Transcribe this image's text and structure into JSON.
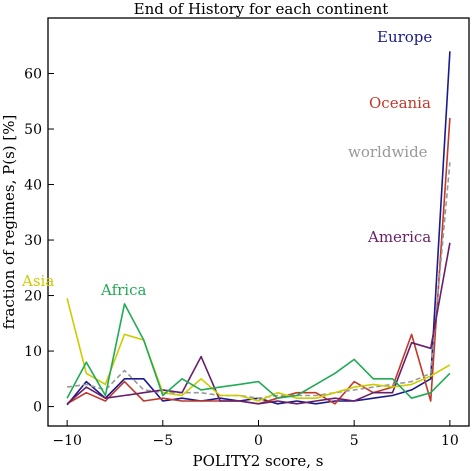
{
  "chart_data": {
    "type": "line",
    "title": "End of History for each continent",
    "xlabel": "POLITY2 score, s",
    "ylabel": "fraction of regimes, P(s) [%]",
    "xlim": [
      -11,
      11
    ],
    "ylim": [
      -3.5,
      70
    ],
    "xticks": [
      -10,
      -5,
      0,
      5,
      10
    ],
    "yticks": [
      0,
      10,
      20,
      30,
      40,
      50,
      60
    ],
    "grid": false,
    "x": [
      -10,
      -9,
      -8,
      -7,
      -6,
      -5,
      -4,
      -3,
      -2,
      -1,
      0,
      1,
      2,
      3,
      4,
      5,
      6,
      7,
      8,
      9,
      10
    ],
    "series": [
      {
        "name": "Europe",
        "color": "#1a1a8c",
        "dashed": false,
        "values": [
          0.3,
          4.5,
          1.5,
          5,
          5,
          1,
          1.5,
          1,
          1.5,
          1,
          1.5,
          0.5,
          1,
          0.5,
          1,
          1,
          1.5,
          2,
          3,
          5,
          64
        ]
      },
      {
        "name": "Oceania",
        "color": "#c0392b",
        "dashed": false,
        "values": [
          0.5,
          2.5,
          1,
          4.5,
          1,
          1.5,
          1,
          1,
          1,
          1,
          0.5,
          1.5,
          2.5,
          2.5,
          0.5,
          4.5,
          2.5,
          3.5,
          13,
          1,
          52
        ]
      },
      {
        "name": "worldwide",
        "color": "#999999",
        "dashed": true,
        "values": [
          3.5,
          4,
          3,
          6.5,
          3,
          2.5,
          2.5,
          2.5,
          2,
          2,
          1.5,
          2,
          2,
          2,
          2.5,
          3,
          3.5,
          4,
          4.5,
          6,
          44
        ]
      },
      {
        "name": "America",
        "color": "#6a1f6a",
        "dashed": false,
        "values": [
          0.5,
          3.5,
          1.5,
          2,
          2.5,
          3,
          2.5,
          9,
          1,
          1,
          0.5,
          1,
          0.5,
          1,
          1.5,
          1,
          2.5,
          2.5,
          11.5,
          10.5,
          29.5
        ]
      },
      {
        "name": "Asia",
        "color": "#cccc00",
        "dashed": false,
        "values": [
          19.5,
          6,
          4,
          13,
          12,
          2.5,
          2,
          5,
          2,
          2,
          1,
          2.5,
          1.5,
          1.5,
          2.5,
          3.5,
          4,
          3.5,
          4,
          5.5,
          7.5
        ]
      },
      {
        "name": "Africa",
        "color": "#22aa55",
        "dashed": false,
        "values": [
          1.5,
          8,
          2,
          18.5,
          12,
          2,
          5,
          3,
          3.5,
          4,
          4.5,
          1.5,
          2,
          4,
          6,
          8.5,
          5,
          5,
          1.5,
          2.5,
          6
        ]
      }
    ],
    "labels": {
      "Europe": "Europe",
      "Oceania": "Oceania",
      "worldwide": "worldwide",
      "America": "America",
      "Asia": "Asia",
      "Africa": "Africa"
    }
  }
}
